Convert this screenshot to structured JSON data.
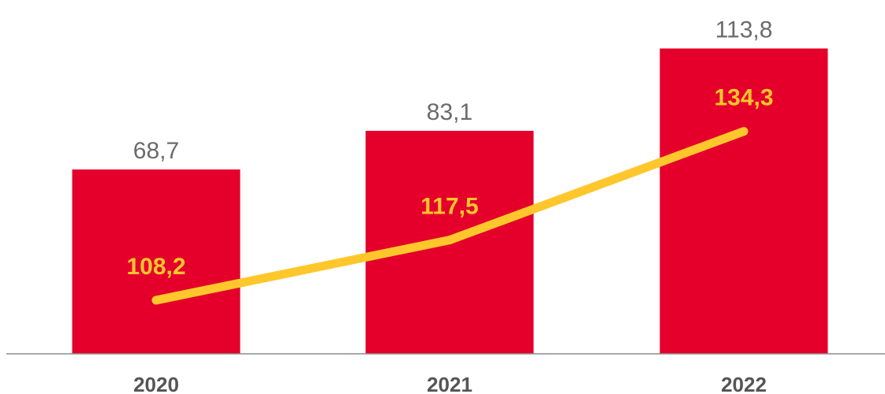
{
  "chart_data": {
    "type": "bar",
    "categories": [
      "2020",
      "2021",
      "2022"
    ],
    "series": [
      {
        "type": "bar",
        "values": [
          68.7,
          83.1,
          113.8
        ],
        "value_labels": [
          "68,7",
          "83,1",
          "113,8"
        ],
        "color": "#E4002B"
      },
      {
        "type": "line",
        "values": [
          108.2,
          117.5,
          134.3
        ],
        "value_labels": [
          "108,2",
          "117,5",
          "134,3"
        ],
        "color": "#FFC72C"
      }
    ],
    "axis_color": "#8C8C8C",
    "bar_label_color": "#6B6B6B",
    "tick_label_color": "#555555",
    "grid": false,
    "legend": "none"
  }
}
